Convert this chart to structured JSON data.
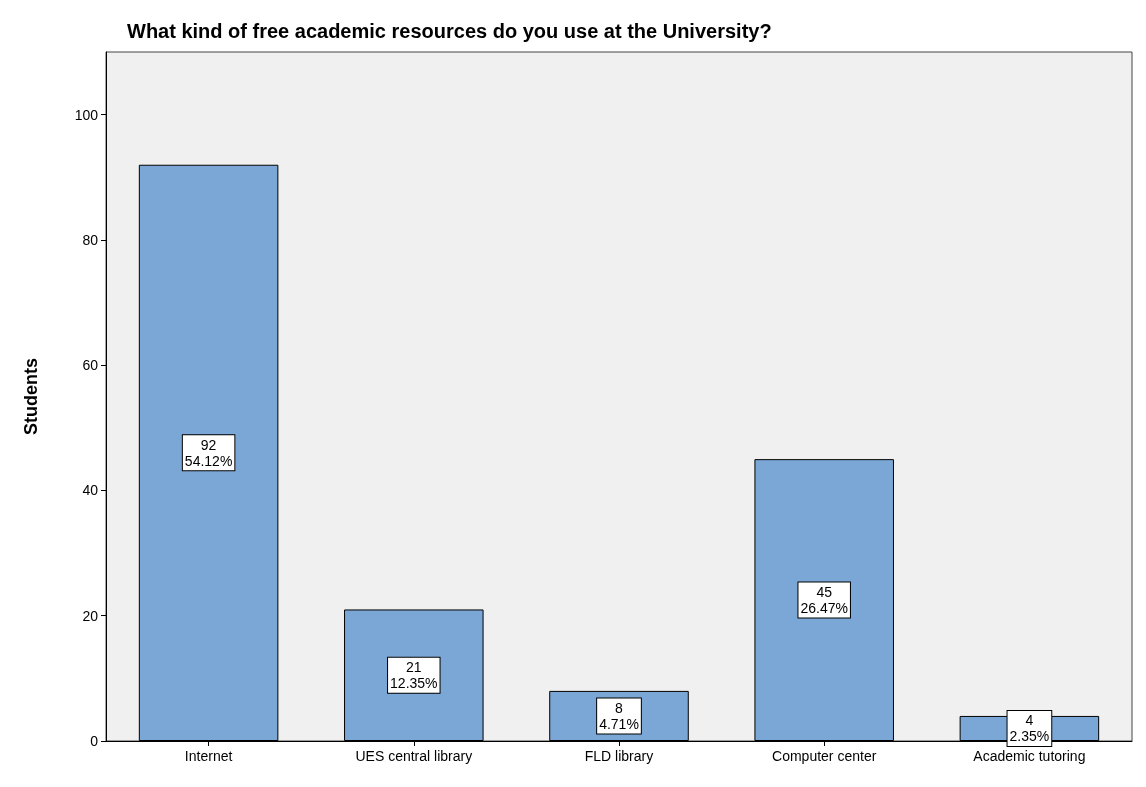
{
  "chart_data": {
    "type": "bar",
    "title": "What kind of free academic resources do you use at the University?",
    "ylabel": "Students",
    "categories": [
      "Internet",
      "UES central library",
      "FLD library",
      "Computer center",
      "Academic tutoring"
    ],
    "values": [
      92,
      21,
      8,
      45,
      4
    ],
    "value_labels": [
      "92\n54.12%",
      "21\n12.35%",
      "8\n4.71%",
      "45\n26.47%",
      "4\n2.35%"
    ],
    "color": "#7ba7d6",
    "ylim": [
      0,
      110
    ],
    "yticks": [
      0,
      20,
      40,
      60,
      80,
      100
    ],
    "grid": false
  }
}
